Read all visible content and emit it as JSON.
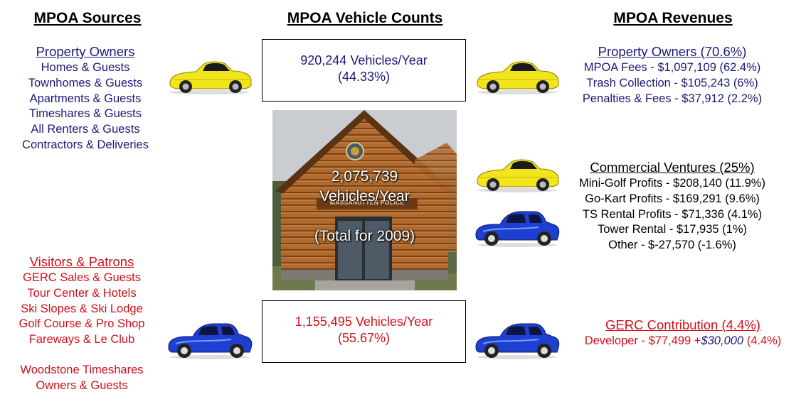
{
  "headers": {
    "sources": "MPOA Sources",
    "counts": "MPOA Vehicle Counts",
    "revenues": "MPOA Revenues"
  },
  "sources": {
    "property_owners": {
      "title": "Property Owners",
      "items": [
        "Homes & Guests",
        "Townhomes & Guests",
        "Apartments & Guests",
        "Timeshares & Guests",
        "All Renters & Guests",
        "Contractors & Deliveries"
      ]
    },
    "visitors": {
      "title": "Visitors & Patrons",
      "items": [
        "GERC Sales & Guests",
        "Tour Center & Hotels",
        "Ski Slopes & Ski Lodge",
        "Golf Course & Pro Shop",
        "Fareways & Le Club"
      ],
      "extra": [
        "Woodstone Timeshares",
        "Owners & Guests"
      ]
    }
  },
  "counts": {
    "owners_box": [
      "920,244 Vehicles/Year",
      "(44.33%)"
    ],
    "total": [
      "2,075,739",
      "Vehicles/Year",
      "(Total for 2009)"
    ],
    "photo_sign": "MASSANUTTEN POLICE",
    "visitors_box": [
      "1,155,495 Vehicles/Year",
      "(55.67%)"
    ]
  },
  "revenues": {
    "property_owners": {
      "title": "Property Owners (70.6%)",
      "items": [
        "MPOA Fees - $1,097,109  (62.4%)",
        "Trash Collection - $105,243 (6%)",
        "Penalties & Fees - $37,912 (2.2%)"
      ]
    },
    "commercial": {
      "title": "Commercial  Ventures (25%)",
      "items": [
        "Mini-Golf Profits - $208,140  (11.9%)",
        "Go-Kart Profits - $169,291 (9.6%)",
        "TS Rental Profits - $71,336 (4.1%)",
        "Tower Rental - $17,935 (1%)",
        "Other - $-27,570 (-1.6%)"
      ]
    },
    "gerc": {
      "title": "GERC Contribution (4.4%)",
      "line_a": "Developer - $77,499 +",
      "line_b": "$30,000",
      "line_c": " (4.4%)"
    }
  },
  "colors": {
    "owners": "#1a1a78",
    "visitors": "#d0101a",
    "yellow_car": "#f2e51c",
    "blue_car": "#1f3fd0"
  }
}
